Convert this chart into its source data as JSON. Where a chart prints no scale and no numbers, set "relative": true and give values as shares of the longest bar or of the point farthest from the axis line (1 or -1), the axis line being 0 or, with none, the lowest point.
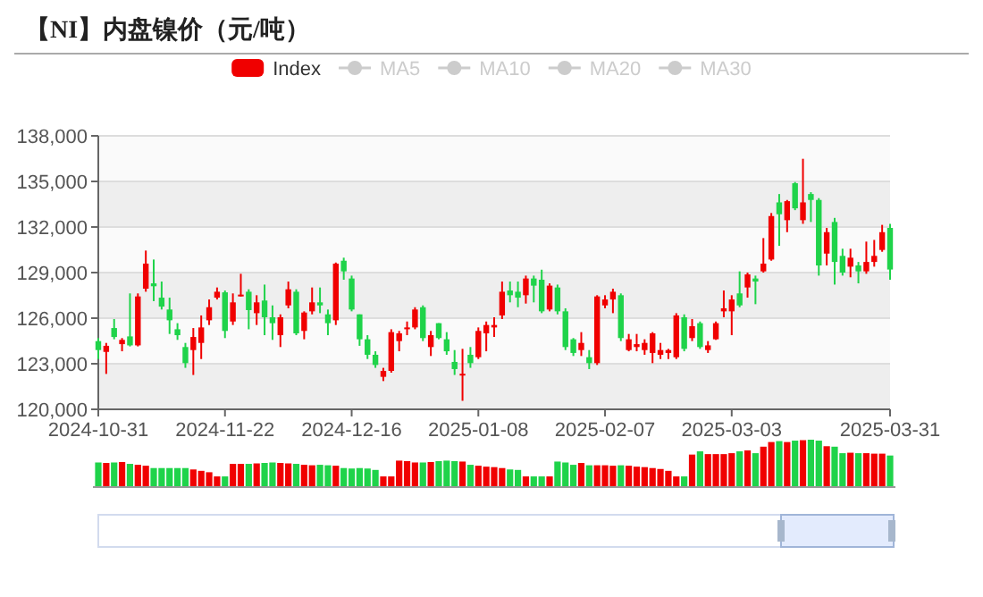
{
  "chart_data": [
    {
      "type": "candlestick",
      "title": "【NI】内盘镍价（元/吨）",
      "categories": [
        "2024-10-31",
        null,
        null,
        null,
        null,
        null,
        null,
        null,
        null,
        null,
        null,
        null,
        null,
        null,
        null,
        null,
        "2024-11-22",
        null,
        null,
        null,
        null,
        null,
        null,
        null,
        null,
        null,
        null,
        null,
        null,
        null,
        null,
        null,
        "2024-12-16",
        null,
        null,
        null,
        null,
        null,
        null,
        null,
        null,
        null,
        null,
        null,
        null,
        null,
        null,
        null,
        "2025-01-08",
        null,
        null,
        null,
        null,
        null,
        null,
        null,
        null,
        null,
        null,
        null,
        null,
        null,
        null,
        null,
        "2025-02-07",
        null,
        null,
        null,
        null,
        null,
        null,
        null,
        null,
        null,
        null,
        null,
        null,
        null,
        null,
        null,
        "2025-03-03",
        null,
        null,
        null,
        null,
        null,
        null,
        null,
        null,
        null,
        null,
        null,
        null,
        null,
        null,
        null,
        null,
        null,
        null,
        null,
        "2025-03-31"
      ],
      "ylim": [
        120000,
        138000
      ],
      "yticks": [
        {
          "value": 120000,
          "label": "120,000"
        },
        {
          "value": 123000,
          "label": "123,000"
        },
        {
          "value": 126000,
          "label": "126,000"
        },
        {
          "value": 129000,
          "label": "129,000"
        },
        {
          "value": 132000,
          "label": "132,000"
        },
        {
          "value": 135000,
          "label": "135,000"
        },
        {
          "value": 138000,
          "label": "138,000"
        }
      ],
      "grid": "y",
      "legend": "top",
      "series": [
        {
          "name": "Index",
          "type": "candlestick",
          "color": "#f00000",
          "colors": [
            "#1fd34a",
            "#f00000",
            "#1fd34a",
            "#f00000",
            "#1fd34a",
            "#f00000",
            "#f00000",
            "#1fd34a",
            "#1fd34a",
            "#1fd34a",
            "#1fd34a",
            "#1fd34a",
            "#f00000",
            "#f00000",
            "#f00000",
            "#f00000",
            "#1fd34a",
            "#f00000",
            "#f00000",
            "#1fd34a",
            "#f00000",
            "#1fd34a",
            "#1fd34a",
            "#f00000",
            "#f00000",
            "#1fd34a",
            "#f00000",
            "#f00000",
            "#1fd34a",
            "#1fd34a",
            "#f00000",
            "#1fd34a",
            "#1fd34a",
            "#1fd34a",
            "#1fd34a",
            "#1fd34a",
            "#f00000",
            "#f00000",
            "#f00000",
            "#f00000",
            "#f00000",
            "#1fd34a",
            "#f00000",
            "#1fd34a",
            "#1fd34a",
            "#1fd34a",
            "#f00000",
            "#1fd34a",
            "#f00000",
            "#f00000",
            "#f00000",
            "#f00000",
            "#1fd34a",
            "#1fd34a",
            "#f00000",
            "#1fd34a",
            "#1fd34a",
            "#f00000",
            "#1fd34a",
            "#1fd34a",
            "#1fd34a",
            "#f00000",
            "#1fd34a",
            "#f00000",
            "#f00000",
            "#f00000",
            "#1fd34a",
            "#f00000",
            "#f00000",
            "#f00000",
            "#f00000",
            "#f00000",
            "#f00000",
            "#f00000",
            "#1fd34a",
            "#f00000",
            "#1fd34a",
            "#f00000",
            "#f00000",
            "#f00000",
            "#f00000",
            "#1fd34a",
            "#f00000",
            "#1fd34a",
            "#f00000",
            "#f00000",
            "#1fd34a",
            "#f00000",
            "#1fd34a",
            "#f00000",
            "#1fd34a",
            "#1fd34a",
            "#f00000",
            "#1fd34a",
            "#1fd34a",
            "#f00000",
            "#1fd34a",
            "#f00000",
            "#f00000",
            "#f00000",
            "#1fd34a"
          ],
          "ohlc": [
            [
              124490,
              124690,
              123310,
              123900
            ],
            [
              123780,
              124370,
              122330,
              124180
            ],
            [
              125350,
              125940,
              124610,
              124760
            ],
            [
              124290,
              124690,
              123820,
              124570
            ],
            [
              124800,
              127630,
              124140,
              124210
            ],
            [
              124210,
              127630,
              124140,
              127430
            ],
            [
              127940,
              130450,
              127740,
              129590
            ],
            [
              128290,
              129860,
              127120,
              128100
            ],
            [
              127350,
              128410,
              126570,
              126760
            ],
            [
              126570,
              127350,
              124960,
              125860
            ],
            [
              125270,
              125670,
              124570,
              124880
            ],
            [
              124100,
              124370,
              122730,
              123040
            ],
            [
              123900,
              125350,
              122260,
              124760
            ],
            [
              124370,
              126180,
              123310,
              125390
            ],
            [
              125860,
              127230,
              125550,
              126720
            ],
            [
              127350,
              128020,
              127230,
              127740
            ],
            [
              127700,
              127820,
              124690,
              125160
            ],
            [
              125780,
              127630,
              125550,
              127040
            ],
            [
              127430,
              128920,
              127430,
              127550
            ],
            [
              127740,
              127900,
              125270,
              126530
            ],
            [
              126330,
              127510,
              125550,
              127040
            ],
            [
              127160,
              128210,
              124880,
              126060
            ],
            [
              126060,
              126840,
              124570,
              125670
            ],
            [
              124880,
              126250,
              124100,
              126060
            ],
            [
              126840,
              128410,
              126650,
              127900
            ],
            [
              127740,
              127900,
              124880,
              125000
            ],
            [
              125160,
              126450,
              124610,
              126370
            ],
            [
              126450,
              128020,
              126250,
              127040
            ],
            [
              127040,
              128020,
              126330,
              126840
            ],
            [
              126250,
              126570,
              124880,
              125670
            ],
            [
              125860,
              129660,
              125550,
              129590
            ],
            [
              129780,
              129980,
              128530,
              129080
            ],
            [
              128610,
              128800,
              126450,
              126570
            ],
            [
              126250,
              126250,
              124180,
              124610
            ],
            [
              124610,
              124880,
              123310,
              123590
            ],
            [
              123590,
              123820,
              122730,
              122920
            ],
            [
              122140,
              122730,
              121860,
              122530
            ],
            [
              122530,
              125270,
              122410,
              125080
            ],
            [
              124490,
              125160,
              123820,
              125000
            ],
            [
              125270,
              125780,
              124880,
              125390
            ],
            [
              125390,
              126720,
              125270,
              126570
            ],
            [
              126720,
              126840,
              124490,
              124690
            ],
            [
              124100,
              125160,
              123510,
              124880
            ],
            [
              125670,
              125670,
              124610,
              124690
            ],
            [
              124610,
              125080,
              123590,
              123820
            ],
            [
              123120,
              123900,
              122260,
              122650
            ],
            [
              122260,
              123980,
              120560,
              122340
            ],
            [
              123590,
              124100,
              122730,
              123040
            ],
            [
              123430,
              125390,
              123310,
              125160
            ],
            [
              125000,
              125780,
              123820,
              125550
            ],
            [
              125390,
              126060,
              124760,
              125550
            ],
            [
              126180,
              128410,
              125940,
              127740
            ],
            [
              127820,
              128410,
              127040,
              127510
            ],
            [
              127740,
              128410,
              126720,
              127350
            ],
            [
              127510,
              128800,
              126960,
              128610
            ],
            [
              128610,
              128800,
              127040,
              128140
            ],
            [
              128530,
              129190,
              126330,
              126450
            ],
            [
              126570,
              128290,
              126450,
              128140
            ],
            [
              128020,
              128210,
              126250,
              126450
            ],
            [
              126450,
              126650,
              123900,
              124100
            ],
            [
              124610,
              124690,
              123510,
              123710
            ],
            [
              123900,
              125080,
              123510,
              124370
            ],
            [
              123430,
              123900,
              122650,
              123040
            ],
            [
              123040,
              127510,
              122920,
              127430
            ],
            [
              126840,
              127510,
              126650,
              127230
            ],
            [
              127230,
              127940,
              126330,
              127740
            ],
            [
              127510,
              127630,
              124490,
              124690
            ],
            [
              123900,
              124960,
              123820,
              124610
            ],
            [
              124100,
              124960,
              123820,
              124290
            ],
            [
              123900,
              124610,
              123590,
              124370
            ],
            [
              123710,
              125080,
              123040,
              125000
            ],
            [
              123590,
              124370,
              123310,
              123900
            ],
            [
              123710,
              123980,
              123310,
              123900
            ],
            [
              123430,
              126330,
              123310,
              126180
            ],
            [
              126060,
              126250,
              123820,
              123980
            ],
            [
              124690,
              125940,
              124490,
              125470
            ],
            [
              125670,
              125780,
              123980,
              124100
            ],
            [
              123900,
              124490,
              123710,
              124210
            ],
            [
              124610,
              125780,
              124570,
              125670
            ],
            [
              126450,
              127820,
              126060,
              126650
            ],
            [
              126450,
              127510,
              124880,
              127230
            ],
            [
              127630,
              129080,
              126720,
              126840
            ],
            [
              128020,
              129000,
              127350,
              128880
            ],
            [
              128610,
              128800,
              126920,
              128410
            ],
            [
              129080,
              131270,
              129000,
              129590
            ],
            [
              129860,
              132920,
              129780,
              132720
            ],
            [
              133620,
              134170,
              130760,
              132840
            ],
            [
              132450,
              133780,
              131660,
              133700
            ],
            [
              134880,
              134960,
              133110,
              133230
            ],
            [
              132450,
              136490,
              132210,
              133620
            ],
            [
              134170,
              134290,
              132330,
              133780
            ],
            [
              133780,
              133900,
              128800,
              129470
            ],
            [
              130250,
              131940,
              129470,
              131660
            ],
            [
              132330,
              132600,
              128210,
              129700
            ],
            [
              130100,
              130570,
              128800,
              129000
            ],
            [
              129390,
              130570,
              128690,
              129980
            ],
            [
              129470,
              129700,
              128290,
              129080
            ],
            [
              129080,
              131040,
              128920,
              129700
            ],
            [
              129700,
              131150,
              129390,
              130100
            ],
            [
              130490,
              132140,
              130370,
              131660
            ],
            [
              131940,
              132210,
              128530,
              129200
            ]
          ]
        },
        {
          "name": "MA5",
          "type": "line",
          "color": "#cccccc",
          "values": [
            null,
            null,
            null,
            null,
            null,
            null,
            null,
            null,
            null,
            null,
            null,
            null,
            null,
            null,
            null,
            null,
            null,
            null,
            null,
            null,
            null,
            null,
            null,
            null,
            null,
            null,
            null,
            null,
            null,
            null,
            null,
            null,
            null,
            null,
            null,
            null,
            null,
            null,
            null,
            null,
            null,
            null,
            null,
            null,
            null,
            null,
            null,
            null,
            null,
            null,
            null,
            null,
            null,
            null,
            null,
            null,
            null,
            null,
            null,
            null,
            null,
            null,
            null,
            null,
            null,
            null,
            null,
            null,
            null,
            null,
            null,
            null,
            null,
            null,
            null,
            null,
            null,
            null,
            null,
            null,
            null,
            null,
            null,
            null,
            null,
            null,
            null,
            null,
            null,
            null,
            null,
            null,
            null,
            null,
            null,
            null,
            null,
            null,
            null,
            null,
            null
          ]
        },
        {
          "name": "MA10",
          "type": "line",
          "color": "#cccccc",
          "values": [
            null,
            null,
            null,
            null,
            null,
            null,
            null,
            null,
            null,
            null,
            null,
            null,
            null,
            null,
            null,
            null,
            null,
            null,
            null,
            null,
            null,
            null,
            null,
            null,
            null,
            null,
            null,
            null,
            null,
            null,
            null,
            null,
            null,
            null,
            null,
            null,
            null,
            null,
            null,
            null,
            null,
            null,
            null,
            null,
            null,
            null,
            null,
            null,
            null,
            null,
            null,
            null,
            null,
            null,
            null,
            null,
            null,
            null,
            null,
            null,
            null,
            null,
            null,
            null,
            null,
            null,
            null,
            null,
            null,
            null,
            null,
            null,
            null,
            null,
            null,
            null,
            null,
            null,
            null,
            null,
            null,
            null,
            null,
            null,
            null,
            null,
            null,
            null,
            null,
            null,
            null,
            null,
            null,
            null,
            null,
            null,
            null,
            null,
            null,
            null,
            null
          ]
        },
        {
          "name": "MA20",
          "type": "line",
          "color": "#cccccc",
          "values": [
            null,
            null,
            null,
            null,
            null,
            null,
            null,
            null,
            null,
            null,
            null,
            null,
            null,
            null,
            null,
            null,
            null,
            null,
            null,
            null,
            null,
            null,
            null,
            null,
            null,
            null,
            null,
            null,
            null,
            null,
            null,
            null,
            null,
            null,
            null,
            null,
            null,
            null,
            null,
            null,
            null,
            null,
            null,
            null,
            null,
            null,
            null,
            null,
            null,
            null,
            null,
            null,
            null,
            null,
            null,
            null,
            null,
            null,
            null,
            null,
            null,
            null,
            null,
            null,
            null,
            null,
            null,
            null,
            null,
            null,
            null,
            null,
            null,
            null,
            null,
            null,
            null,
            null,
            null,
            null,
            null,
            null,
            null,
            null,
            null,
            null,
            null,
            null,
            null,
            null,
            null,
            null,
            null,
            null,
            null,
            null,
            null,
            null,
            null,
            null,
            null
          ]
        },
        {
          "name": "MA30",
          "type": "line",
          "color": "#cccccc",
          "values": [
            null,
            null,
            null,
            null,
            null,
            null,
            null,
            null,
            null,
            null,
            null,
            null,
            null,
            null,
            null,
            null,
            null,
            null,
            null,
            null,
            null,
            null,
            null,
            null,
            null,
            null,
            null,
            null,
            null,
            null,
            null,
            null,
            null,
            null,
            null,
            null,
            null,
            null,
            null,
            null,
            null,
            null,
            null,
            null,
            null,
            null,
            null,
            null,
            null,
            null,
            null,
            null,
            null,
            null,
            null,
            null,
            null,
            null,
            null,
            null,
            null,
            null,
            null,
            null,
            null,
            null,
            null,
            null,
            null,
            null,
            null,
            null,
            null,
            null,
            null,
            null,
            null,
            null,
            null,
            null,
            null,
            null,
            null,
            null,
            null,
            null,
            null,
            null,
            null,
            null,
            null,
            null,
            null,
            null,
            null,
            null,
            null,
            null,
            null,
            null,
            null
          ]
        }
      ]
    },
    {
      "type": "bar",
      "relative": true,
      "categories": [
        null,
        null,
        null,
        null,
        null,
        null,
        null,
        null,
        null,
        null,
        null,
        null,
        null,
        null,
        null,
        null,
        null,
        null,
        null,
        null,
        null,
        null,
        null,
        null,
        null,
        null,
        null,
        null,
        null,
        null,
        null,
        null,
        null,
        null,
        null,
        null,
        null,
        null,
        null,
        null,
        null,
        null,
        null,
        null,
        null,
        null,
        null,
        null,
        null,
        null,
        null,
        null,
        null,
        null,
        null,
        null,
        null,
        null,
        null,
        null,
        null,
        null,
        null,
        null,
        null,
        null,
        null,
        null,
        null,
        null,
        null,
        null,
        null,
        null,
        null,
        null,
        null,
        null,
        null,
        null,
        null,
        null,
        null,
        null,
        null,
        null,
        null,
        null,
        null,
        null,
        null,
        null,
        null,
        null,
        null,
        null,
        null,
        null,
        null,
        null,
        null
      ],
      "values": [
        0.51,
        0.5,
        0.51,
        0.52,
        0.48,
        0.46,
        0.44,
        0.39,
        0.39,
        0.39,
        0.39,
        0.39,
        0.36,
        0.33,
        0.3,
        0.21,
        0.21,
        0.48,
        0.48,
        0.48,
        0.49,
        0.5,
        0.51,
        0.5,
        0.49,
        0.48,
        0.46,
        0.45,
        0.46,
        0.45,
        0.44,
        0.39,
        0.38,
        0.39,
        0.38,
        0.35,
        0.21,
        0.21,
        0.55,
        0.54,
        0.51,
        0.51,
        0.52,
        0.54,
        0.55,
        0.54,
        0.53,
        0.46,
        0.44,
        0.42,
        0.41,
        0.39,
        0.36,
        0.35,
        0.21,
        0.21,
        0.21,
        0.21,
        0.53,
        0.51,
        0.46,
        0.5,
        0.45,
        0.45,
        0.45,
        0.44,
        0.45,
        0.44,
        0.42,
        0.41,
        0.39,
        0.37,
        0.33,
        0.21,
        0.21,
        0.68,
        0.75,
        0.69,
        0.69,
        0.69,
        0.71,
        0.75,
        0.77,
        0.71,
        0.85,
        0.95,
        0.97,
        0.95,
        0.98,
        0.99,
        1,
        0.98,
        0.86,
        0.85,
        0.71,
        0.72,
        0.71,
        0.71,
        0.7,
        0.7,
        0.66
      ],
      "colors": [
        "#1fd34a",
        "#f00000",
        "#1fd34a",
        "#f00000",
        "#1fd34a",
        "#f00000",
        "#f00000",
        "#1fd34a",
        "#1fd34a",
        "#1fd34a",
        "#1fd34a",
        "#1fd34a",
        "#f00000",
        "#f00000",
        "#f00000",
        "#f00000",
        "#1fd34a",
        "#f00000",
        "#f00000",
        "#1fd34a",
        "#f00000",
        "#1fd34a",
        "#1fd34a",
        "#f00000",
        "#f00000",
        "#1fd34a",
        "#f00000",
        "#f00000",
        "#1fd34a",
        "#1fd34a",
        "#f00000",
        "#1fd34a",
        "#1fd34a",
        "#1fd34a",
        "#1fd34a",
        "#1fd34a",
        "#f00000",
        "#f00000",
        "#f00000",
        "#f00000",
        "#f00000",
        "#1fd34a",
        "#f00000",
        "#1fd34a",
        "#1fd34a",
        "#1fd34a",
        "#f00000",
        "#1fd34a",
        "#f00000",
        "#f00000",
        "#f00000",
        "#f00000",
        "#1fd34a",
        "#1fd34a",
        "#f00000",
        "#1fd34a",
        "#1fd34a",
        "#f00000",
        "#1fd34a",
        "#1fd34a",
        "#1fd34a",
        "#f00000",
        "#1fd34a",
        "#f00000",
        "#f00000",
        "#f00000",
        "#1fd34a",
        "#f00000",
        "#f00000",
        "#f00000",
        "#f00000",
        "#f00000",
        "#f00000",
        "#f00000",
        "#1fd34a",
        "#f00000",
        "#1fd34a",
        "#f00000",
        "#f00000",
        "#f00000",
        "#f00000",
        "#1fd34a",
        "#f00000",
        "#1fd34a",
        "#f00000",
        "#f00000",
        "#1fd34a",
        "#f00000",
        "#1fd34a",
        "#f00000",
        "#1fd34a",
        "#1fd34a",
        "#f00000",
        "#1fd34a",
        "#1fd34a",
        "#f00000",
        "#1fd34a",
        "#f00000",
        "#f00000",
        "#f00000",
        "#1fd34a"
      ]
    }
  ]
}
